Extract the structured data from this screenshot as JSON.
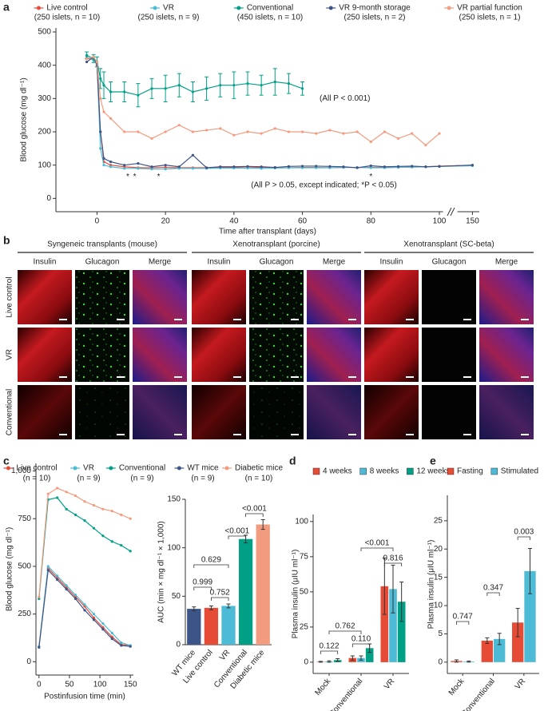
{
  "chart_data": [
    {
      "panel": "a",
      "type": "line",
      "y_label": "Blood glucose (mg dl⁻¹)",
      "x_label": "Time after transplant (days)",
      "x": [
        -3,
        -1,
        0,
        1,
        2,
        4,
        8,
        12,
        16,
        20,
        24,
        28,
        32,
        36,
        40,
        44,
        48,
        52,
        56,
        60,
        64,
        68,
        72,
        76,
        80,
        84,
        88,
        92,
        96,
        100,
        150
      ],
      "series": [
        {
          "name": "Live control",
          "detail": "(250 islets, n = 10)",
          "color": "#e64b35",
          "values": [
            420,
            420,
            410,
            200,
            110,
            100,
            95,
            92,
            92,
            93,
            92,
            92,
            92,
            93,
            93,
            92,
            93,
            93,
            92,
            93,
            93,
            92,
            93,
            93,
            93,
            93,
            94,
            94,
            95,
            97,
            100
          ]
        },
        {
          "name": "VR",
          "detail": "(250 islets, n = 9)",
          "color": "#4dbbd5",
          "values": [
            425,
            415,
            405,
            150,
            100,
            95,
            90,
            90,
            88,
            88,
            90,
            90,
            90,
            91,
            91,
            91,
            90,
            91,
            92,
            92,
            92,
            92,
            93,
            93,
            92,
            92,
            93,
            94,
            95,
            96,
            98
          ]
        },
        {
          "name": "Conventional",
          "detail": "(450 islets, n = 10)",
          "color": "#00a087",
          "values": [
            430,
            420,
            410,
            360,
            340,
            320,
            320,
            310,
            330,
            330,
            340,
            320,
            330,
            340,
            340,
            345,
            340,
            350,
            345,
            330,
            null,
            null,
            null,
            null,
            null,
            null,
            null,
            null,
            null,
            null,
            null
          ],
          "errors": [
            10,
            12,
            15,
            30,
            40,
            30,
            30,
            35,
            30,
            40,
            35,
            30,
            35,
            35,
            40,
            35,
            30,
            40,
            30,
            20,
            null,
            null,
            null,
            null,
            null,
            null,
            null,
            null,
            null,
            null,
            null
          ]
        },
        {
          "name": "VR 9-month storage",
          "detail": "(250 islets, n = 2)",
          "color": "#3c5488",
          "values": [
            410,
            425,
            400,
            200,
            120,
            110,
            100,
            105,
            95,
            100,
            95,
            130,
            92,
            95,
            95,
            96,
            95,
            93,
            96,
            97,
            97,
            96,
            95,
            92,
            98,
            95,
            96,
            97,
            95,
            96,
            100
          ]
        },
        {
          "name": "VR partial function",
          "detail": "(250 islets, n = 1)",
          "color": "#f39b7f",
          "values": [
            420,
            425,
            410,
            300,
            260,
            240,
            200,
            200,
            180,
            200,
            220,
            200,
            205,
            210,
            190,
            200,
            195,
            210,
            200,
            200,
            195,
            205,
            195,
            200,
            170,
            200,
            180,
            195,
            160,
            195,
            null
          ]
        }
      ],
      "xlim": [
        -12,
        152
      ],
      "x_break": [
        102,
        147
      ],
      "ylim": [
        -40,
        512
      ],
      "xticks": [
        0,
        20,
        40,
        60,
        80,
        100,
        150
      ],
      "yticks": [
        0,
        100,
        200,
        300,
        400,
        500
      ],
      "annotations": [
        "(All P < 0.001)",
        "(All P > 0.05, except indicated; *P < 0.05)"
      ],
      "asterisk": "*",
      "asterisk_days": [
        9,
        11,
        18,
        80
      ]
    },
    {
      "panel": "c",
      "type": "line",
      "y_label": "Blood glucose (mg dl⁻¹)",
      "x_label": "Postinfusion time (min)",
      "x": [
        0,
        15,
        30,
        45,
        60,
        75,
        90,
        105,
        120,
        135,
        150
      ],
      "series": [
        {
          "name": "Live control",
          "detail": "(n = 10)",
          "color": "#e64b35",
          "values": [
            80,
            490,
            440,
            390,
            340,
            290,
            230,
            180,
            130,
            90,
            85
          ]
        },
        {
          "name": "VR",
          "detail": "(n = 9)",
          "color": "#4dbbd5",
          "values": [
            80,
            500,
            450,
            400,
            350,
            300,
            250,
            200,
            150,
            100,
            85
          ]
        },
        {
          "name": "Conventional",
          "detail": "(n = 9)",
          "color": "#00a087",
          "values": [
            330,
            850,
            860,
            800,
            770,
            740,
            700,
            660,
            630,
            610,
            580
          ]
        },
        {
          "name": "WT mice",
          "detail": "(n = 9)",
          "color": "#3c5488",
          "values": [
            75,
            480,
            430,
            380,
            330,
            270,
            220,
            170,
            120,
            85,
            80
          ]
        },
        {
          "name": "Diabetic mice",
          "detail": "(n = 10)",
          "color": "#f39b7f",
          "values": [
            340,
            880,
            910,
            890,
            870,
            840,
            820,
            800,
            790,
            770,
            750
          ]
        }
      ],
      "xlim": [
        -5,
        155
      ],
      "ylim": [
        -70,
        1040
      ],
      "xticks": [
        0,
        50,
        100,
        150
      ],
      "yticks": [
        0,
        250,
        500,
        750,
        {
          "value": 1000,
          "label": "1,000"
        }
      ]
    },
    {
      "type": "bar",
      "y_label": "AUC (min × mg dl⁻¹ × 1,000)",
      "categories": [
        "WT mice",
        "Live control",
        "VR",
        "Conventional",
        "Diabetic mice"
      ],
      "values": [
        37,
        38,
        40,
        109,
        124
      ],
      "errors": [
        2,
        2,
        2,
        4,
        5
      ],
      "colors": [
        "#3c5488",
        "#e64b35",
        "#4dbbd5",
        "#00a087",
        "#f39b7f"
      ],
      "ylim": [
        0,
        150
      ],
      "yticks": [
        0,
        50,
        100,
        150
      ],
      "comparisons": [
        "0.629",
        "0.999",
        "0.752",
        "<0.001",
        "<0.001"
      ]
    },
    {
      "panel": "d",
      "type": "grouped_bar",
      "y_label": "Plasma insulin (μIU ml⁻¹)",
      "categories": [
        "Mock",
        "Conventional",
        "VR"
      ],
      "series": [
        {
          "name": "4 weeks",
          "color": "#e64b35",
          "values": [
            0.3,
            3,
            54
          ],
          "errors": [
            0.3,
            1.5,
            20
          ]
        },
        {
          "name": "8 weeks",
          "color": "#4dbbd5",
          "values": [
            0.5,
            3,
            52
          ],
          "errors": [
            0.5,
            1.5,
            17
          ]
        },
        {
          "name": "12 weeks",
          "color": "#00a087",
          "values": [
            1.5,
            10,
            43
          ],
          "errors": [
            1,
            3,
            14
          ]
        }
      ],
      "ylim": [
        -8,
        105
      ],
      "yticks": [
        0,
        25,
        50,
        75,
        100
      ],
      "comparisons": [
        "0.122",
        "0.762",
        "0.110",
        "<0.001",
        "0.816"
      ]
    },
    {
      "panel": "e",
      "type": "grouped_bar",
      "y_label": "Plasma insulin (μIU ml⁻¹)",
      "categories": [
        "Mock",
        "Conventional",
        "VR"
      ],
      "series": [
        {
          "name": "Fasting",
          "color": "#e64b35",
          "values": [
            0.2,
            3.8,
            7
          ],
          "errors": [
            0.2,
            0.5,
            2.5
          ]
        },
        {
          "name": "Stimulated",
          "color": "#4dbbd5",
          "values": [
            0.1,
            4.1,
            16.1
          ],
          "errors": [
            0.1,
            1,
            4
          ]
        }
      ],
      "ylim": [
        -2,
        29.5
      ],
      "yticks": [
        0,
        5,
        10,
        15,
        20,
        25
      ],
      "comparisons": [
        "0.747",
        "0.347",
        "0.003"
      ]
    }
  ],
  "panel_b": {
    "panel": "b",
    "groups": [
      "Syngeneic transplants (mouse)",
      "Xenotransplant (porcine)",
      "Xenotransplant (SC-beta)"
    ],
    "channels": [
      "Insulin",
      "Glucagon",
      "Merge"
    ],
    "rows": [
      "Live control",
      "VR",
      "Conventional"
    ]
  }
}
